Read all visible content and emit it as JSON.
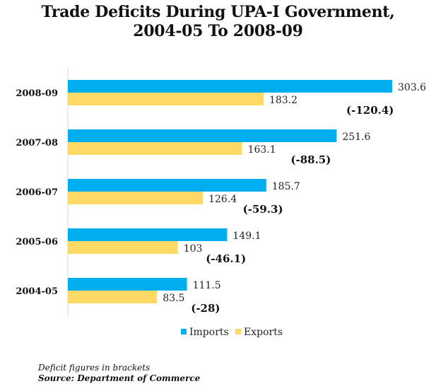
{
  "title_line1": "Trade Deficits During UPA-I Government,",
  "title_line2": "2004-05 To 2008-09",
  "note_deficit": "Deficit figures in brackets",
  "note_source": "Source: Department of Commerce",
  "colors": {
    "imports": "#00AEEF",
    "exports": "#FFD966",
    "axis": "#D9D9D9"
  },
  "chart_data": {
    "type": "bar",
    "orientation": "horizontal",
    "title": "Trade Deficits During UPA-I Government, 2004-05 To 2008-09",
    "categories": [
      "2008-09",
      "2007-08",
      "2006-07",
      "2005-06",
      "2004-05"
    ],
    "series": [
      {
        "name": "Imports",
        "values": [
          303.6,
          251.6,
          185.7,
          149.1,
          111.5
        ],
        "labels": [
          "303.6",
          "251.6",
          "185.7",
          "149.1",
          "111.5"
        ]
      },
      {
        "name": "Exports",
        "values": [
          183.2,
          163.1,
          126.4,
          103,
          83.5
        ],
        "labels": [
          "183.2",
          "163.1",
          "126.4",
          "103",
          "83.5"
        ]
      }
    ],
    "deficit_labels": [
      "(-120.4)",
      "(-88.5)",
      "(-59.3)",
      "(-46.1)",
      "(-28)"
    ],
    "xlim": [
      0,
      303.6
    ],
    "legend": "bottom-center",
    "grid": false
  }
}
